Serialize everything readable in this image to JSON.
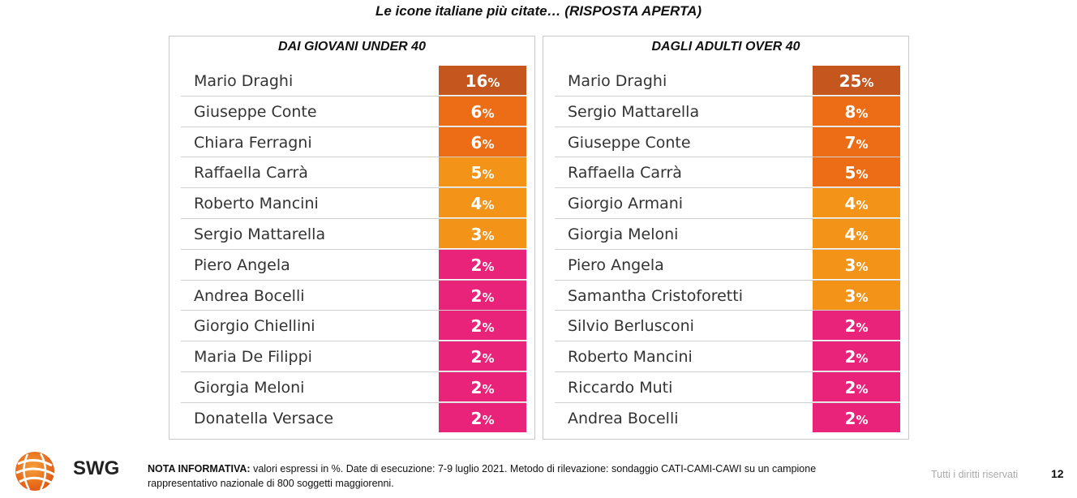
{
  "title": "Le icone italiane più citate… (RISPOSTA APERTA)",
  "left_panel": {
    "header": "DAI GIOVANI UNDER 40",
    "rows": [
      {
        "name": "Mario Draghi",
        "value": "16",
        "color": "#c5561e"
      },
      {
        "name": "Giuseppe Conte",
        "value": "6",
        "color": "#ed6d16"
      },
      {
        "name": "Chiara Ferragni",
        "value": "6",
        "color": "#ed6d16"
      },
      {
        "name": "Raffaella Carrà",
        "value": "5",
        "color": "#f39318"
      },
      {
        "name": "Roberto Mancini",
        "value": "4",
        "color": "#f39318"
      },
      {
        "name": "Sergio Mattarella",
        "value": "3",
        "color": "#f39318"
      },
      {
        "name": "Piero Angela",
        "value": "2",
        "color": "#e9237a"
      },
      {
        "name": "Andrea Bocelli",
        "value": "2",
        "color": "#e9237a"
      },
      {
        "name": "Giorgio Chiellini",
        "value": "2",
        "color": "#e9237a"
      },
      {
        "name": "Maria De Filippi",
        "value": "2",
        "color": "#e9237a"
      },
      {
        "name": "Giorgia Meloni",
        "value": "2",
        "color": "#e9237a"
      },
      {
        "name": "Donatella Versace",
        "value": "2",
        "color": "#e9237a"
      }
    ]
  },
  "right_panel": {
    "header": "DAGLI ADULTI OVER 40",
    "rows": [
      {
        "name": "Mario Draghi",
        "value": "25",
        "color": "#c5561e"
      },
      {
        "name": "Sergio Mattarella",
        "value": "8",
        "color": "#ed6d16"
      },
      {
        "name": "Giuseppe Conte",
        "value": "7",
        "color": "#ed6d16"
      },
      {
        "name": "Raffaella Carrà",
        "value": "5",
        "color": "#ed6d16"
      },
      {
        "name": "Giorgio Armani",
        "value": "4",
        "color": "#f39318"
      },
      {
        "name": "Giorgia Meloni",
        "value": "4",
        "color": "#f39318"
      },
      {
        "name": "Piero Angela",
        "value": "3",
        "color": "#f39318"
      },
      {
        "name": "Samantha Cristoforetti",
        "value": "3",
        "color": "#f39318"
      },
      {
        "name": "Silvio Berlusconi",
        "value": "2",
        "color": "#e9237a"
      },
      {
        "name": "Roberto Mancini",
        "value": "2",
        "color": "#e9237a"
      },
      {
        "name": "Riccardo Muti",
        "value": "2",
        "color": "#e9237a"
      },
      {
        "name": "Andrea Bocelli",
        "value": "2",
        "color": "#e9237a"
      }
    ]
  },
  "percent_symbol": "%",
  "footer": {
    "logo_text": "SWG",
    "note_label": "NOTA INFORMATIVA:",
    "note_text": " valori espressi in %. Date di esecuzione: 7-9 luglio 2021. Metodo di rilevazione: sondaggio CATI-CAMI-CAWI su un campione rappresentativo nazionale di 800 soggetti maggiorenni.",
    "rights": "Tutti i diritti riservati",
    "page_number": "12"
  }
}
